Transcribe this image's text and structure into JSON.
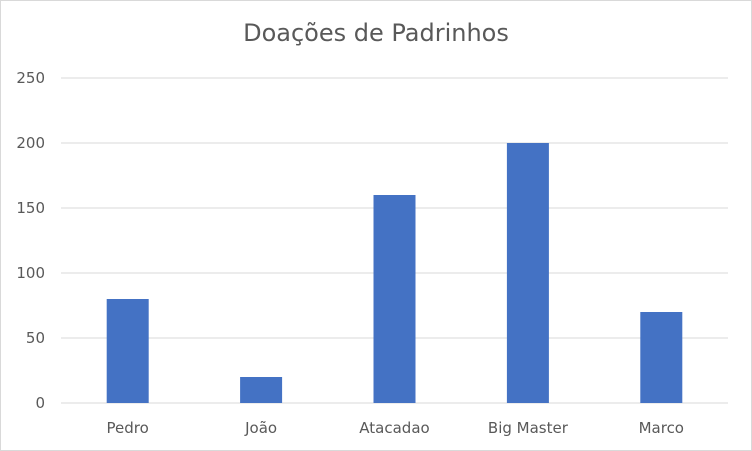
{
  "chart_data": {
    "type": "bar",
    "title": "Doações de Padrinhos",
    "categories": [
      "Pedro",
      "João",
      "Atacadao",
      "Big Master",
      "Marco"
    ],
    "values": [
      80,
      20,
      160,
      200,
      70
    ],
    "ylim": [
      0,
      250
    ],
    "yticks": [
      0,
      50,
      100,
      150,
      200,
      250
    ],
    "xlabel": "",
    "ylabel": "",
    "grid": true,
    "legend": "none",
    "bar_color": "#4472c4",
    "grid_color": "#d9d9d9"
  }
}
